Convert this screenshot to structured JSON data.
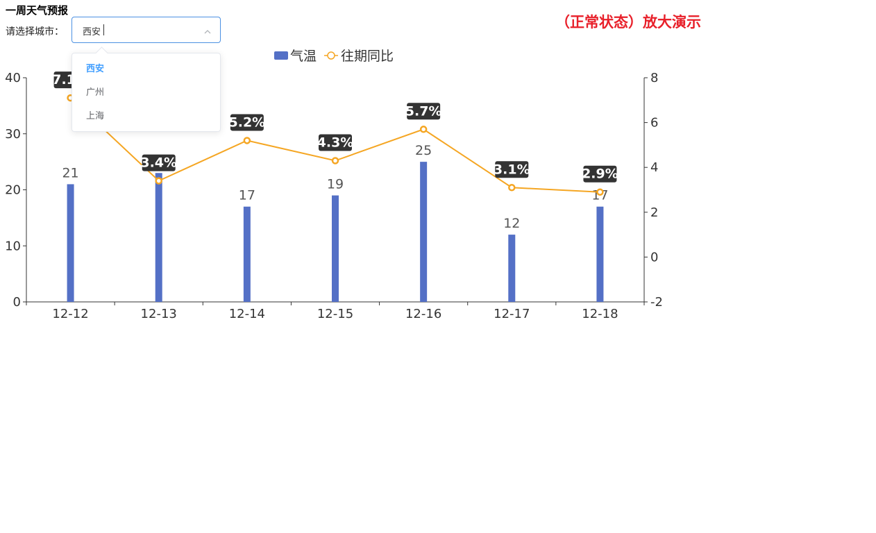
{
  "header": {
    "title": "一周天气预报",
    "banner": "（正常状态）放大演示"
  },
  "city_picker": {
    "label": "请选择城市：",
    "value": "西安",
    "options": [
      "西安",
      "广州",
      "上海"
    ],
    "selected_index": 0
  },
  "colors": {
    "bar": "#5470c6",
    "line": "#f5a623",
    "label_bg": "#333333",
    "accent": "#409eff",
    "banner": "#e8202a"
  },
  "chart_data": {
    "type": "bar",
    "categories": [
      "12-12",
      "12-13",
      "12-14",
      "12-15",
      "12-16",
      "12-17",
      "12-18"
    ],
    "series": [
      {
        "name": "气温",
        "type": "bar",
        "values": [
          21,
          23,
          17,
          19,
          25,
          12,
          17
        ]
      },
      {
        "name": "往期同比",
        "type": "line",
        "values": [
          7.1,
          3.4,
          5.2,
          4.3,
          5.7,
          3.1,
          2.9
        ]
      }
    ],
    "data_labels_bar": [
      "21",
      "",
      "17",
      "19",
      "25",
      "12",
      "17"
    ],
    "data_labels_line": [
      "7.1%",
      "3.4%",
      "5.2%",
      "4.3%",
      "5.7%",
      "3.1%",
      "2.9%"
    ],
    "y_left": {
      "min": 0,
      "max": 40,
      "ticks": [
        "0",
        "10",
        "20",
        "30",
        "40"
      ]
    },
    "y_right": {
      "min": -2,
      "max": 8,
      "ticks": [
        "-2",
        "0",
        "2",
        "4",
        "6",
        "8"
      ]
    },
    "legend": "top-center",
    "grid": false
  }
}
